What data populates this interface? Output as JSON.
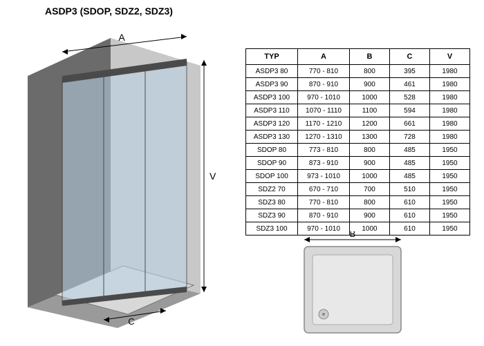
{
  "title": "ASDP3 (SDOP, SDZ2, SDZ3)",
  "diagram": {
    "labels": {
      "A": "A",
      "V": "V",
      "C": "C",
      "B": "B"
    },
    "colors": {
      "wall_light": "#c8c8c8",
      "wall_dark": "#6b6b6b",
      "floor": "#9a9a9a",
      "glass": "#b8d4e8",
      "frame": "#4a4a4a",
      "arrow": "#000000",
      "tray": "#e8e8e8",
      "tray_border": "#888888"
    }
  },
  "table": {
    "columns": [
      "TYP",
      "A",
      "B",
      "C",
      "V"
    ],
    "rows": [
      [
        "ASDP3 80",
        "770 - 810",
        "800",
        "395",
        "1980"
      ],
      [
        "ASDP3 90",
        "870 - 910",
        "900",
        "461",
        "1980"
      ],
      [
        "ASDP3 100",
        "970 - 1010",
        "1000",
        "528",
        "1980"
      ],
      [
        "ASDP3 110",
        "1070 - 1110",
        "1100",
        "594",
        "1980"
      ],
      [
        "ASDP3 120",
        "1170 - 1210",
        "1200",
        "661",
        "1980"
      ],
      [
        "ASDP3 130",
        "1270 - 1310",
        "1300",
        "728",
        "1980"
      ],
      [
        "SDOP 80",
        "773 - 810",
        "800",
        "485",
        "1950"
      ],
      [
        "SDOP 90",
        "873 - 910",
        "900",
        "485",
        "1950"
      ],
      [
        "SDOP 100",
        "973 - 1010",
        "1000",
        "485",
        "1950"
      ],
      [
        "SDZ2 70",
        "670 - 710",
        "700",
        "510",
        "1950"
      ],
      [
        "SDZ3 80",
        "770 - 810",
        "800",
        "610",
        "1950"
      ],
      [
        "SDZ3 90",
        "870 - 910",
        "900",
        "610",
        "1950"
      ],
      [
        "SDZ3 100",
        "970 - 1010",
        "1000",
        "610",
        "1950"
      ]
    ]
  }
}
